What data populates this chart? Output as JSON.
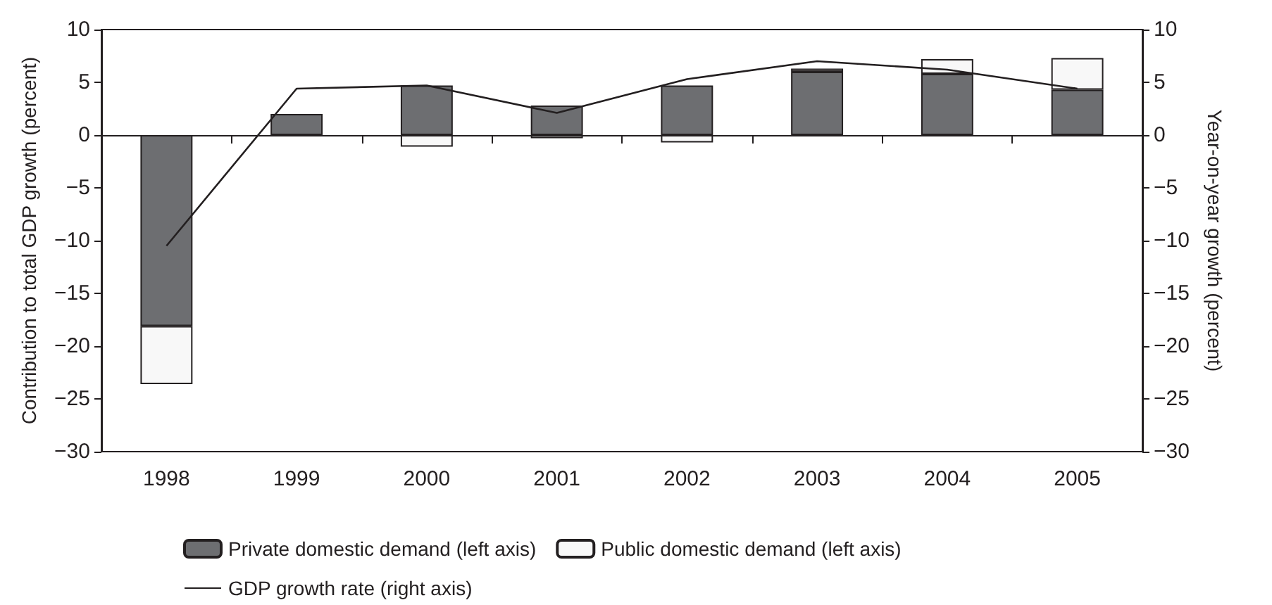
{
  "chart_data": {
    "type": "bar",
    "categories": [
      "1998",
      "1999",
      "2000",
      "2001",
      "2002",
      "2003",
      "2004",
      "2005"
    ],
    "ylabel": "Contribution to total GDP growth (percent)",
    "y2label": "Year-on-year growth (percent)",
    "stacked": true,
    "ylim": [
      -30,
      10
    ],
    "yticks": [
      -30,
      -25,
      -20,
      -15,
      -10,
      -5,
      0,
      5,
      10
    ],
    "y2lim": [
      -30,
      10
    ],
    "y2ticks": [
      -30,
      -25,
      -20,
      -15,
      -10,
      -5,
      0,
      5,
      10
    ],
    "series": [
      {
        "name": "Private domestic demand (left axis)",
        "color": "#6d6e71",
        "values": [
          -18.1,
          2.0,
          4.7,
          2.8,
          4.7,
          6.0,
          5.8,
          4.3
        ]
      },
      {
        "name": "Public domestic demand (left axis)",
        "color": "#f8f8f8",
        "values": [
          -5.5,
          null,
          -1.1,
          -0.3,
          -0.7,
          0.3,
          1.4,
          3.0
        ]
      },
      {
        "name": "GDP growth rate (right axis)",
        "type": "line",
        "axis": "y2",
        "color": "#231f20",
        "values": [
          -10.5,
          4.4,
          4.7,
          2.1,
          5.3,
          7.0,
          6.2,
          4.4
        ]
      }
    ],
    "legend": "bottom",
    "marker": "none"
  }
}
